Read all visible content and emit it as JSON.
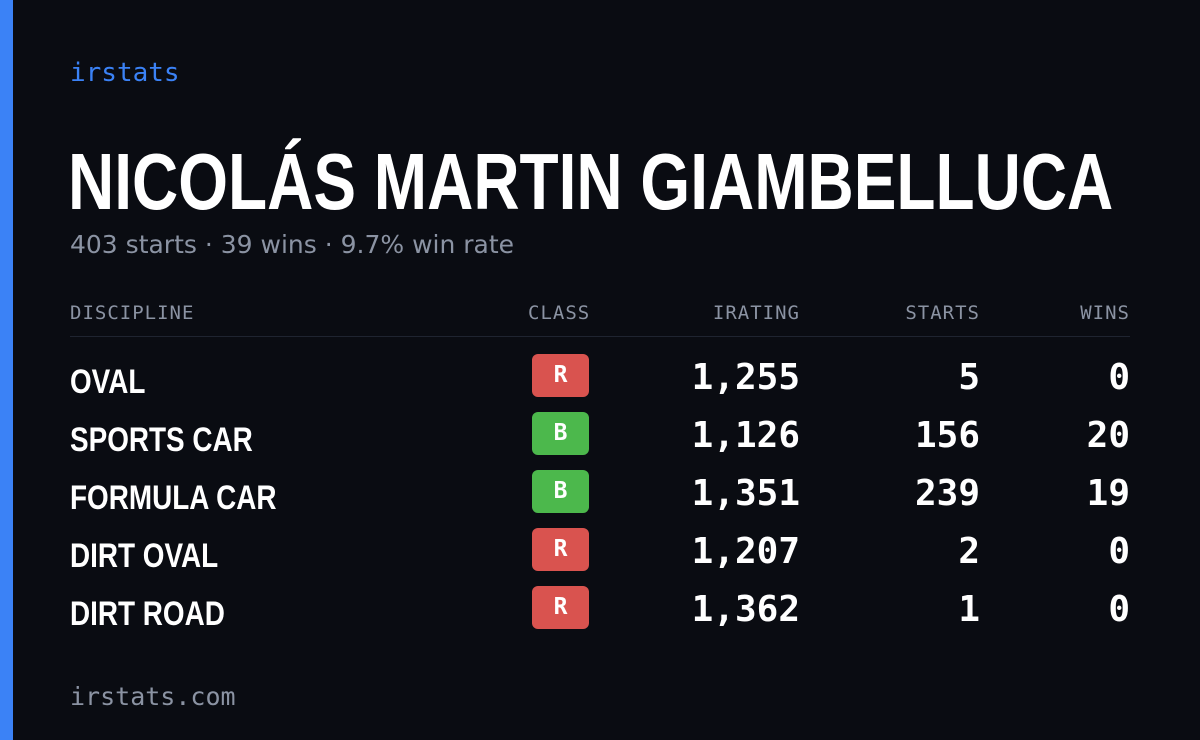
{
  "brand": "irstats",
  "driver_name": "NICOLÁS MARTIN GIAMBELLUCA",
  "summary": "403 starts · 39 wins · 9.7% win rate",
  "table": {
    "headers": {
      "discipline": "DISCIPLINE",
      "class": "CLASS",
      "irating": "IRATING",
      "starts": "STARTS",
      "wins": "WINS"
    },
    "rows": [
      {
        "discipline": "OVAL",
        "class": "R",
        "class_color": "#d9534f",
        "irating": "1,255",
        "starts": "5",
        "wins": "0"
      },
      {
        "discipline": "SPORTS CAR",
        "class": "B",
        "class_color": "#4cb84c",
        "irating": "1,126",
        "starts": "156",
        "wins": "20"
      },
      {
        "discipline": "FORMULA CAR",
        "class": "B",
        "class_color": "#4cb84c",
        "irating": "1,351",
        "starts": "239",
        "wins": "19"
      },
      {
        "discipline": "DIRT OVAL",
        "class": "R",
        "class_color": "#d9534f",
        "irating": "1,207",
        "starts": "2",
        "wins": "0"
      },
      {
        "discipline": "DIRT ROAD",
        "class": "R",
        "class_color": "#d9534f",
        "irating": "1,362",
        "starts": "1",
        "wins": "0"
      }
    ]
  },
  "footer": "irstats.com",
  "colors": {
    "accent": "#3b82f6",
    "background": "#0a0c12",
    "muted": "#8b93a3"
  }
}
